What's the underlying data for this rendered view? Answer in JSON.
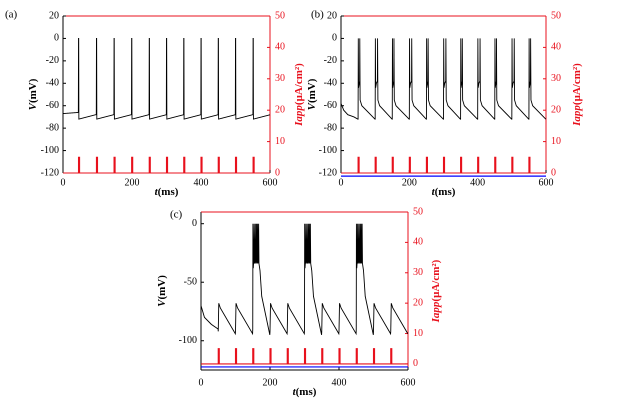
{
  "chart_data": [
    {
      "type": "line",
      "panel_label": "(a)",
      "xlabel_italic": "t",
      "xlabel_unit": "(ms)",
      "ylabel_italic": "V",
      "ylabel_unit": "(mV)",
      "y2label_italic": "Iapp",
      "y2label_unit": "(μA/cm²)",
      "xlim": [
        0,
        600
      ],
      "ylim": [
        -120,
        20
      ],
      "y2lim": [
        0,
        50
      ],
      "xticks": [
        "0",
        "200",
        "400",
        "600"
      ],
      "yticks": [
        "-120",
        "-100",
        "-80",
        "-60",
        "-40",
        "-20",
        "0",
        "20"
      ],
      "y2ticks": [
        "0",
        "10",
        "20",
        "30",
        "40",
        "50"
      ],
      "series": [
        {
          "name": "V",
          "color": "#000000",
          "axis": "left",
          "mode": "tonic",
          "spike_times": [
            45,
            97,
            148,
            199,
            250,
            300,
            350,
            400,
            450,
            500,
            551
          ],
          "rest_mV": -70,
          "peak_mV": 0
        },
        {
          "name": "Iapp",
          "color": "#ff0000",
          "axis": "right",
          "pulse_times": [
            45,
            97,
            148,
            199,
            250,
            300,
            350,
            400,
            450,
            500,
            551
          ],
          "pulse_width_ms": 3,
          "pulse_amplitude": 5,
          "baseline": 0
        }
      ]
    },
    {
      "type": "line",
      "panel_label": "(b)",
      "xlabel_italic": "t",
      "xlabel_unit": "(ms)",
      "ylabel_italic": "V",
      "ylabel_unit": "(mV)",
      "y2label_italic": "Iapp",
      "y2label_unit": "(μA/cm²)",
      "xlim": [
        0,
        600
      ],
      "ylim": [
        -120,
        20
      ],
      "y2lim": [
        0,
        50
      ],
      "xticks": [
        "0",
        "200",
        "400",
        "600"
      ],
      "yticks": [
        "-120",
        "-100",
        "-80",
        "-60",
        "-40",
        "-20",
        "0",
        "20"
      ],
      "y2ticks": [
        "0",
        "10",
        "20",
        "30",
        "40",
        "50"
      ],
      "series": [
        {
          "name": "V",
          "color": "#000000",
          "axis": "left",
          "mode": "doublet",
          "spike_times": [
            50,
            100,
            150,
            200,
            250,
            300,
            350,
            400,
            450,
            500,
            550
          ],
          "rest_mV": -70,
          "peak_mV": 0
        },
        {
          "name": "Iapp",
          "color": "#ff0000",
          "axis": "right",
          "pulse_times": [
            50,
            100,
            150,
            200,
            250,
            300,
            350,
            400,
            450,
            500,
            550
          ],
          "pulse_width_ms": 3,
          "pulse_amplitude": 5,
          "baseline": 0
        },
        {
          "name": "baseline",
          "color": "#0000ff",
          "axis": "right",
          "constant": -1
        }
      ]
    },
    {
      "type": "line",
      "panel_label": "(c)",
      "xlabel_italic": "t",
      "xlabel_unit": "(ms)",
      "ylabel_italic": "V",
      "ylabel_unit": "(mV)",
      "y2label_italic": "Iapp",
      "y2label_unit": "(μA/cm²)",
      "xlim": [
        0,
        600
      ],
      "ylim": [
        -125,
        10
      ],
      "y2lim": [
        -2,
        50
      ],
      "xticks": [
        "0",
        "200",
        "400",
        "600"
      ],
      "yticks": [
        "-100",
        "-50",
        "0"
      ],
      "y2ticks": [
        "0",
        "10",
        "20",
        "30",
        "40",
        "50"
      ],
      "series": [
        {
          "name": "V",
          "color": "#000000",
          "axis": "left",
          "mode": "burst",
          "pulse_times": [
            50,
            100,
            150,
            200,
            250,
            300,
            350,
            400,
            450,
            500,
            550
          ],
          "burst_times": [
            150,
            300,
            450
          ],
          "rest_mV": -70,
          "peak_mV": 0
        },
        {
          "name": "Iapp",
          "color": "#ff0000",
          "axis": "right",
          "pulse_times": [
            50,
            100,
            150,
            200,
            250,
            300,
            350,
            400,
            450,
            500,
            550
          ],
          "pulse_width_ms": 3,
          "pulse_amplitude": 5,
          "baseline": 0
        },
        {
          "name": "baseline",
          "color": "#0000ff",
          "axis": "right",
          "constant": -1
        }
      ]
    }
  ]
}
